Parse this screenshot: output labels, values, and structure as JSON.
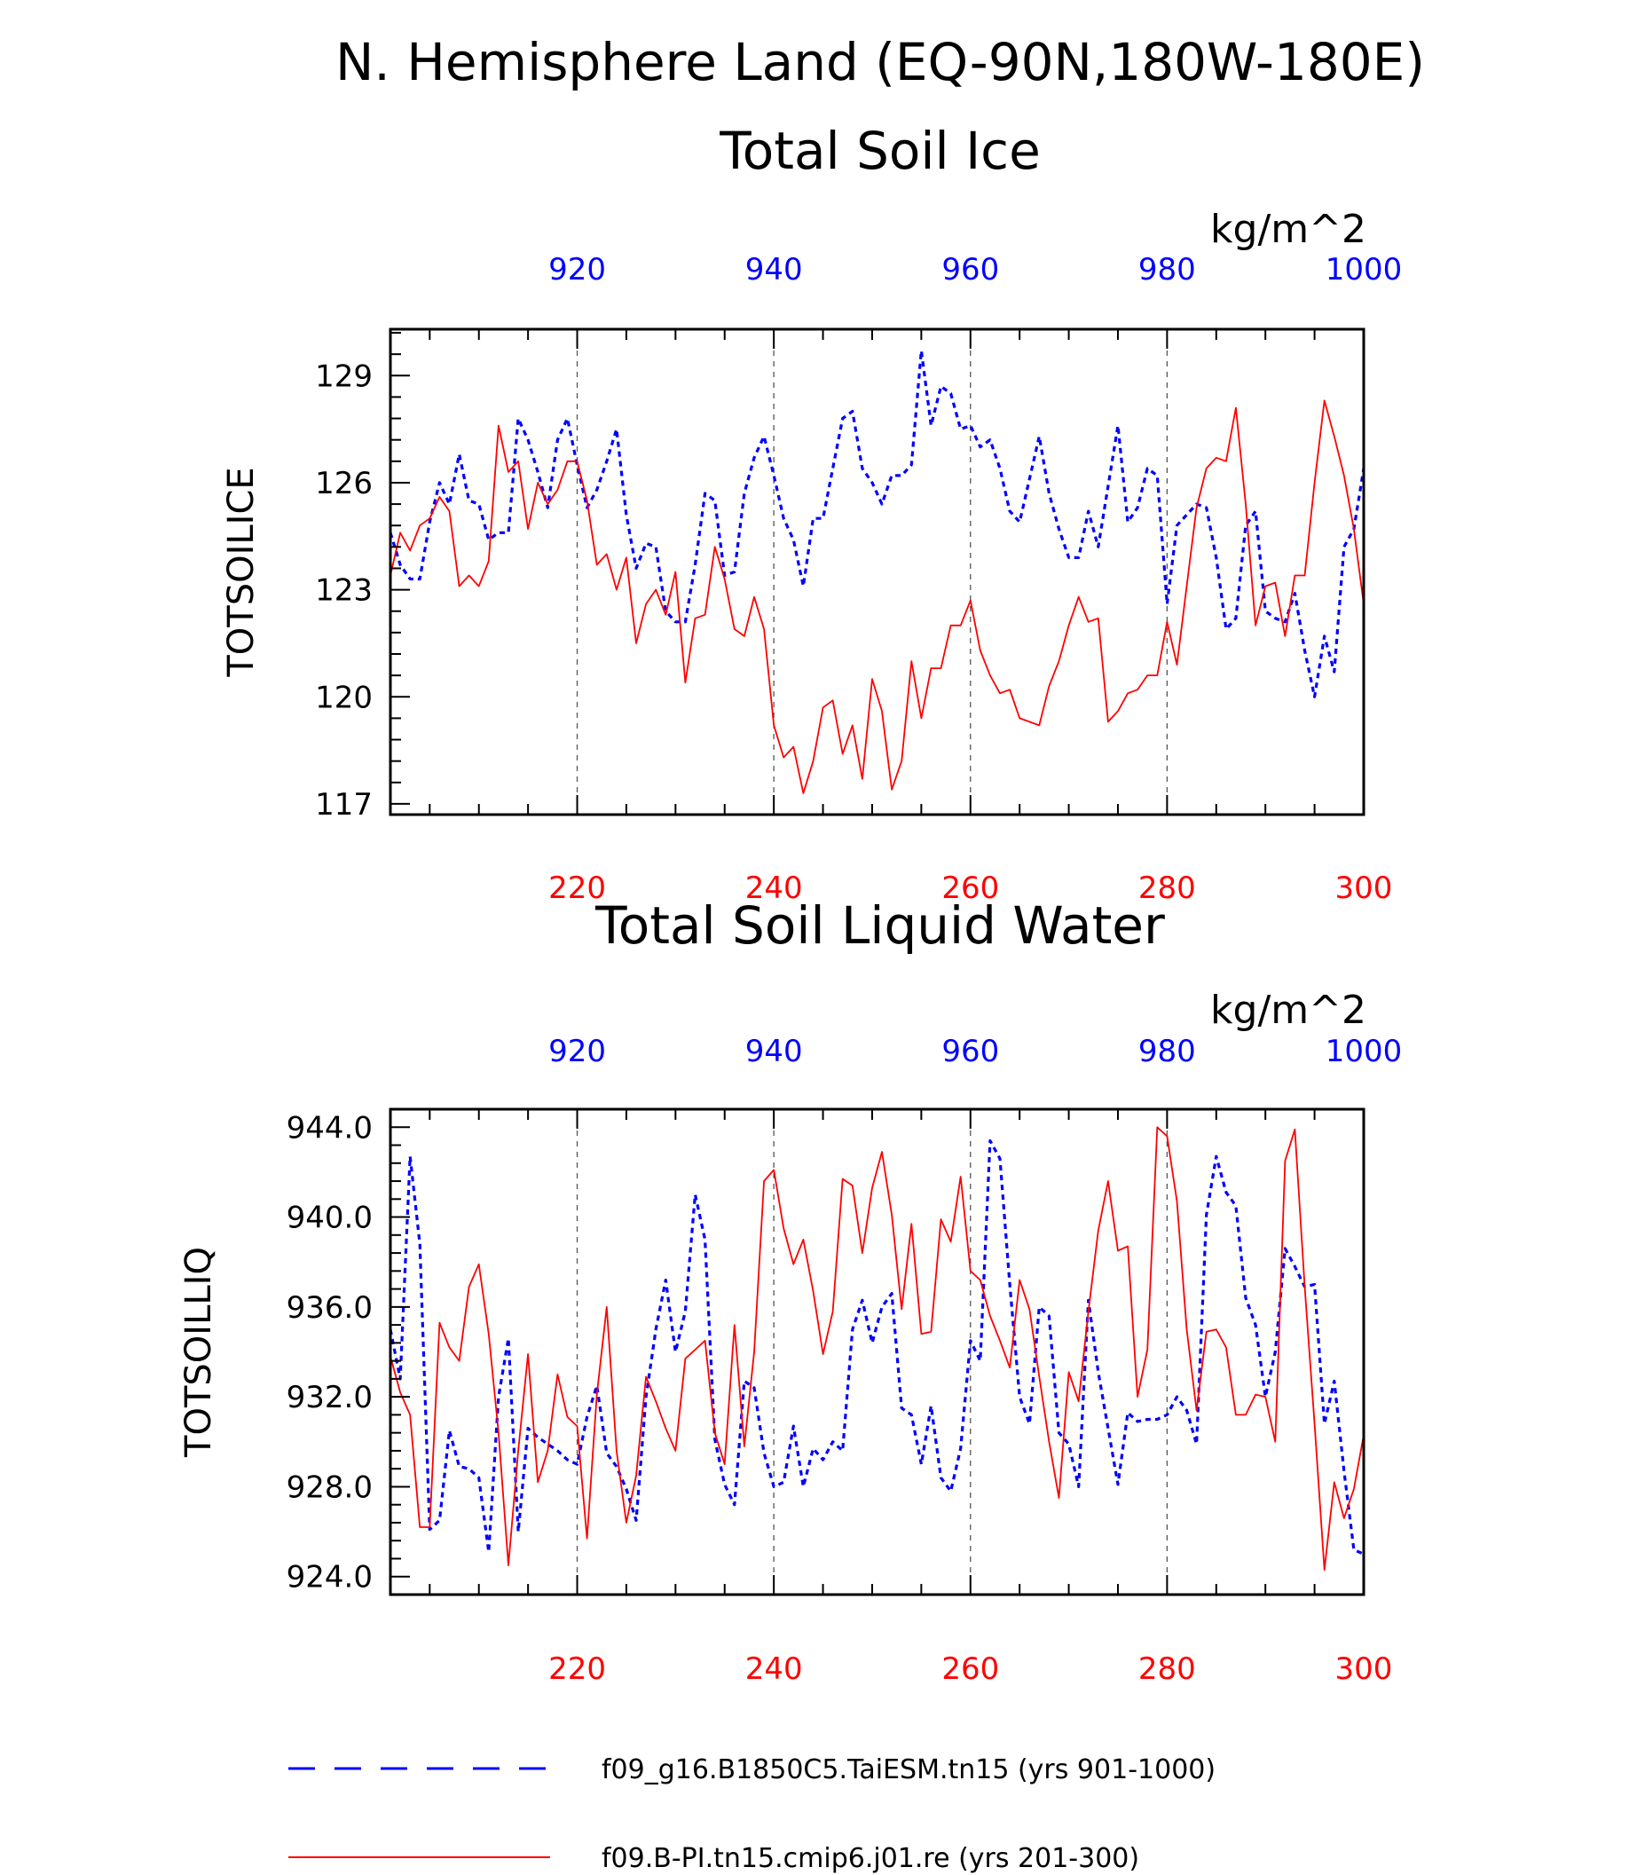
{
  "title_line1": "N. Hemisphere Land (EQ-90N,180W-180E)",
  "colors": {
    "model_a": "#0000ff",
    "model_b": "#ff0000",
    "axis": "#000000",
    "grid": "#555555"
  },
  "legend": [
    {
      "label": "f09_g16.B1850C5.TaiESM.tn15 (yrs 901-1000)",
      "color": "#0000ff",
      "style": "dashed"
    },
    {
      "label": "f09.B-PI.tn15.cmip6.j01.re (yrs 201-300)",
      "color": "#ff0000",
      "style": "solid"
    }
  ],
  "chart_data": [
    {
      "type": "line",
      "title": "Total Soil Ice",
      "ylabel": "TOTSOILICE",
      "units": "kg/m^2",
      "ylim": [
        116.7,
        130.3
      ],
      "yticks": [
        117,
        120,
        123,
        126,
        129
      ],
      "ytick_labels": [
        "117",
        "120",
        "123",
        "126",
        "129"
      ],
      "xlim_bottom": [
        201,
        300
      ],
      "xlim_top": [
        901,
        1000
      ],
      "xticks_bottom": [
        220,
        240,
        260,
        280,
        300
      ],
      "xticks_top": [
        920,
        940,
        960,
        980,
        1000
      ],
      "grid_x": true,
      "series": [
        {
          "axis": "top",
          "color": "#0000ff",
          "style": "dashed",
          "x_start": 901,
          "values": [
            124.6,
            123.7,
            123.3,
            123.3,
            124.9,
            126.0,
            125.4,
            126.8,
            125.5,
            125.4,
            124.4,
            124.6,
            124.6,
            127.8,
            127.2,
            126.3,
            125.3,
            127.2,
            127.8,
            126.5,
            125.3,
            125.8,
            126.6,
            127.5,
            125.1,
            123.6,
            124.3,
            124.2,
            122.4,
            122.1,
            122.1,
            123.7,
            125.7,
            125.5,
            123.4,
            123.5,
            125.7,
            126.7,
            127.3,
            126.2,
            125.0,
            124.4,
            123.1,
            125.0,
            125.0,
            126.4,
            127.8,
            128.0,
            126.4,
            126.0,
            125.4,
            126.2,
            126.2,
            126.5,
            129.7,
            127.6,
            128.7,
            128.5,
            127.5,
            127.6,
            127.0,
            127.2,
            126.4,
            125.2,
            124.9,
            126.1,
            127.3,
            125.7,
            124.7,
            123.9,
            123.9,
            125.2,
            124.2,
            125.9,
            127.6,
            124.9,
            125.3,
            126.4,
            126.2,
            122.6,
            124.8,
            125.1,
            125.4,
            125.3,
            123.9,
            121.9,
            122.2,
            124.8,
            125.2,
            122.4,
            122.2,
            122.1,
            122.9,
            121.3,
            120.0,
            121.7,
            120.7,
            124.2,
            124.7,
            126.4
          ]
        },
        {
          "axis": "bottom",
          "color": "#ff0000",
          "style": "solid",
          "x_start": 201,
          "values": [
            123.4,
            124.6,
            124.1,
            124.8,
            125.0,
            125.6,
            125.2,
            123.1,
            123.4,
            123.1,
            123.8,
            127.6,
            126.3,
            126.6,
            124.7,
            126.0,
            125.4,
            125.8,
            126.6,
            126.6,
            125.5,
            123.7,
            124.0,
            123.0,
            123.9,
            121.5,
            122.6,
            123.0,
            122.3,
            123.5,
            120.4,
            122.2,
            122.3,
            124.2,
            123.3,
            121.9,
            121.7,
            122.8,
            121.9,
            119.2,
            118.3,
            118.6,
            117.3,
            118.2,
            119.7,
            119.9,
            118.4,
            119.2,
            117.7,
            120.5,
            119.6,
            117.4,
            118.2,
            121.0,
            119.4,
            120.8,
            120.8,
            122.0,
            122.0,
            122.7,
            121.3,
            120.6,
            120.1,
            120.2,
            119.4,
            119.3,
            119.2,
            120.3,
            121.0,
            122.0,
            122.8,
            122.1,
            122.2,
            119.3,
            119.6,
            120.1,
            120.2,
            120.6,
            120.6,
            122.1,
            120.9,
            123.1,
            125.3,
            126.4,
            126.7,
            126.6,
            128.1,
            125.4,
            122.0,
            123.1,
            123.2,
            121.7,
            123.4,
            123.4,
            126.0,
            128.3,
            127.3,
            126.2,
            124.7,
            122.6
          ]
        }
      ]
    },
    {
      "type": "line",
      "title": "Total Soil Liquid Water",
      "ylabel": "TOTSOILLIQ",
      "units": "kg/m^2",
      "ylim": [
        923.2,
        944.8
      ],
      "yticks": [
        924,
        928,
        932,
        936,
        940,
        944
      ],
      "ytick_labels": [
        "924.0",
        "928.0",
        "932.0",
        "936.0",
        "940.0",
        "944.0"
      ],
      "xlim_bottom": [
        201,
        300
      ],
      "xlim_top": [
        901,
        1000
      ],
      "xticks_bottom": [
        220,
        240,
        260,
        280,
        300
      ],
      "xticks_top": [
        920,
        940,
        960,
        980,
        1000
      ],
      "grid_x": true,
      "series": [
        {
          "axis": "top",
          "color": "#0000ff",
          "style": "dashed",
          "x_start": 901,
          "values": [
            935.0,
            932.8,
            942.7,
            938.8,
            926.1,
            926.5,
            930.5,
            928.9,
            928.8,
            928.4,
            925.1,
            932.0,
            934.6,
            926.0,
            930.6,
            930.2,
            929.9,
            929.6,
            929.2,
            929.0,
            931.1,
            932.5,
            929.5,
            928.9,
            927.9,
            926.5,
            932.0,
            935.0,
            937.2,
            934.0,
            935.8,
            941.0,
            939.0,
            930.1,
            928.1,
            927.2,
            932.7,
            932.4,
            929.5,
            928.0,
            928.2,
            930.7,
            928.0,
            929.7,
            929.2,
            930.0,
            929.6,
            935.0,
            936.3,
            934.4,
            936.0,
            936.6,
            931.5,
            931.2,
            929.0,
            931.6,
            928.4,
            927.8,
            929.7,
            934.5,
            933.6,
            943.4,
            942.6,
            937.0,
            932.0,
            930.8,
            936.0,
            935.6,
            930.4,
            929.9,
            928.0,
            936.3,
            933.1,
            930.6,
            928.1,
            931.3,
            930.9,
            931.0,
            931.0,
            931.2,
            932.0,
            931.4,
            929.9,
            940.1,
            942.7,
            941.1,
            940.5,
            936.4,
            935.2,
            932.0,
            934.0,
            938.6,
            937.8,
            936.9,
            937.0,
            930.8,
            932.7,
            928.7,
            925.2,
            925.0
          ]
        },
        {
          "axis": "bottom",
          "color": "#ff0000",
          "style": "solid",
          "x_start": 201,
          "values": [
            933.8,
            932.2,
            931.2,
            926.2,
            926.2,
            935.3,
            934.2,
            933.6,
            936.9,
            937.9,
            934.8,
            930.4,
            924.5,
            929.6,
            933.9,
            928.2,
            929.6,
            933.0,
            931.1,
            930.7,
            925.7,
            932.1,
            936.0,
            929.6,
            926.4,
            928.5,
            932.9,
            931.8,
            930.6,
            929.6,
            933.7,
            934.1,
            934.5,
            930.4,
            929.0,
            935.2,
            929.8,
            934.0,
            941.6,
            942.1,
            939.5,
            937.9,
            939.0,
            936.7,
            933.9,
            935.8,
            941.7,
            941.4,
            938.4,
            941.3,
            942.9,
            940.1,
            935.9,
            939.7,
            934.8,
            934.9,
            939.9,
            938.9,
            941.8,
            937.6,
            937.2,
            935.6,
            934.5,
            933.3,
            937.2,
            935.9,
            932.9,
            930.0,
            927.5,
            933.1,
            931.8,
            935.8,
            939.4,
            941.6,
            938.5,
            938.7,
            932.0,
            934.1,
            944.0,
            943.6,
            940.7,
            935.0,
            931.4,
            934.9,
            935.0,
            934.2,
            931.2,
            931.2,
            932.1,
            932.0,
            930.0,
            942.5,
            943.9,
            936.9,
            930.8,
            924.3,
            928.2,
            926.6,
            927.9,
            930.3
          ]
        }
      ]
    }
  ]
}
